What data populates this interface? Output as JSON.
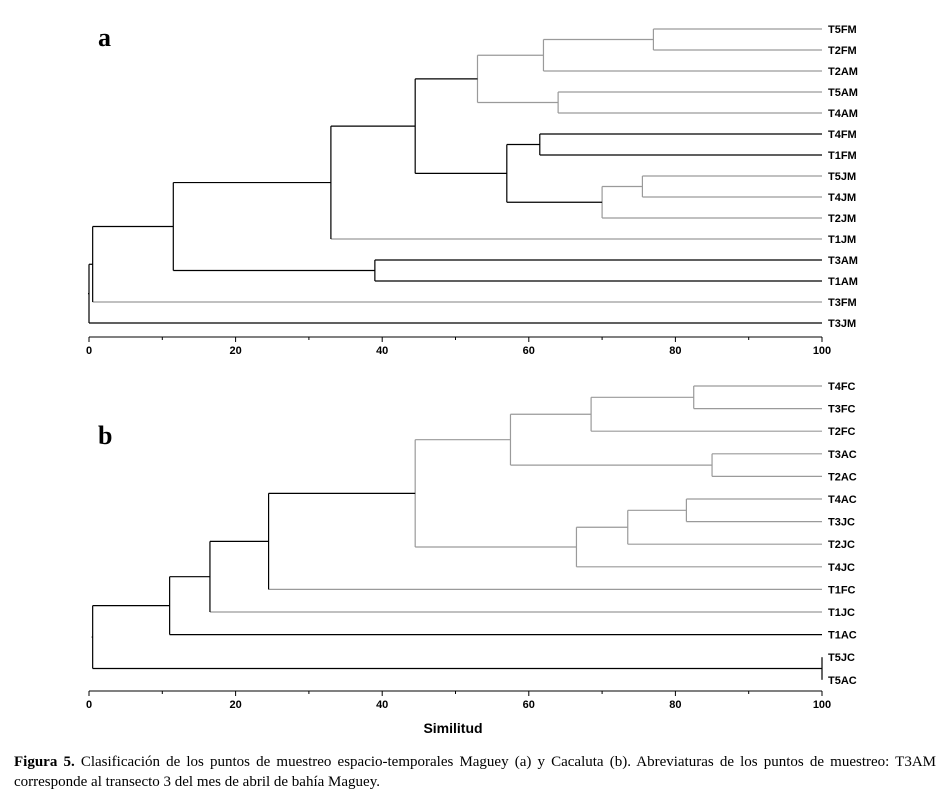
{
  "caption": {
    "label": "Figura 5.",
    "text": "Clasificación de los puntos de muestreo espacio-temporales Maguey (a) y Cacaluta (b). Abreviaturas de los puntos de muestreo: T3AM corresponde al transecto 3 del mes de abril de bahía Maguey."
  },
  "chart_data": [
    {
      "type": "dendrogram",
      "panel": "a",
      "xlabel": "",
      "xlim": [
        0,
        100
      ],
      "xticks": [
        0,
        20,
        40,
        60,
        80,
        100
      ],
      "leaves": [
        "T5FM",
        "T2FM",
        "T2AM",
        "T5AM",
        "T4AM",
        "T4FM",
        "T1FM",
        "T5JM",
        "T4JM",
        "T2JM",
        "T1JM",
        "T3AM",
        "T1AM",
        "T3FM",
        "T3JM"
      ],
      "merges": [
        {
          "a": "T5FM",
          "b": "T2FM",
          "similarity": 77
        },
        {
          "a": "T5JM",
          "b": "T4JM",
          "similarity": 75.5
        },
        {
          "a": "T5FM+T2FM",
          "b": "T2AM",
          "similarity": 62
        },
        {
          "a": "T4FM",
          "b": "T1FM",
          "similarity": 61.5
        },
        {
          "a": "T5AM",
          "b": "T4AM",
          "similarity": 64
        },
        {
          "a": "T5JM+T4JM",
          "b": "T2JM",
          "similarity": 70
        },
        {
          "a": "T4FM+T1FM",
          "b": "T5JM+T4JM+T2JM",
          "similarity": 57
        },
        {
          "a": "T5FM+T2FM+T2AM",
          "b": "T5AM+T4AM",
          "similarity": 53
        },
        {
          "a": "FM/AM group",
          "b": "FM/JM group",
          "similarity": 44.5
        },
        {
          "a": "T3AM",
          "b": "T1AM",
          "similarity": 39
        },
        {
          "a": "upper group",
          "b": "T1JM",
          "similarity": 33
        },
        {
          "a": "upper group+T1JM",
          "b": "T3AM+T1AM",
          "similarity": 11.5
        },
        {
          "a": "main group",
          "b": "T3FM",
          "similarity": 0.5
        },
        {
          "a": "main group+T3FM",
          "b": "T3JM",
          "similarity": 0
        }
      ]
    },
    {
      "type": "dendrogram",
      "panel": "b",
      "xlabel": "Similitud",
      "xlim": [
        0,
        100
      ],
      "xticks": [
        0,
        20,
        40,
        60,
        80,
        100
      ],
      "leaves": [
        "T4FC",
        "T3FC",
        "T2FC",
        "T3AC",
        "T2AC",
        "T4AC",
        "T3JC",
        "T2JC",
        "T4JC",
        "T1FC",
        "T1JC",
        "T1AC",
        "T5JC",
        "T5AC"
      ],
      "merges": [
        {
          "a": "T4FC",
          "b": "T3FC",
          "similarity": 82.5
        },
        {
          "a": "T4FC+T3FC",
          "b": "T2FC",
          "similarity": 68.5
        },
        {
          "a": "T3AC",
          "b": "T2AC",
          "similarity": 85
        },
        {
          "a": "FC group",
          "b": "T3AC+T2AC",
          "similarity": 57.5
        },
        {
          "a": "T4AC",
          "b": "T3JC",
          "similarity": 81.5
        },
        {
          "a": "T4AC+T3JC",
          "b": "T2JC",
          "similarity": 73.5
        },
        {
          "a": "T4AC+T3JC+T2JC",
          "b": "T4JC",
          "similarity": 66.5
        },
        {
          "a": "FC/AC group",
          "b": "AC/JC group",
          "similarity": 44.5
        },
        {
          "a": "combined group",
          "b": "T1FC",
          "similarity": 24.5
        },
        {
          "a": "combined group+T1FC",
          "b": "T1JC",
          "similarity": 16.5
        },
        {
          "a": "combined group+T1FC+T1JC",
          "b": "T1AC",
          "similarity": 11
        },
        {
          "a": "T5JC",
          "b": "T5AC",
          "similarity": 100
        },
        {
          "a": "main group",
          "b": "T5JC+T5AC",
          "similarity": 0.5
        }
      ]
    }
  ]
}
